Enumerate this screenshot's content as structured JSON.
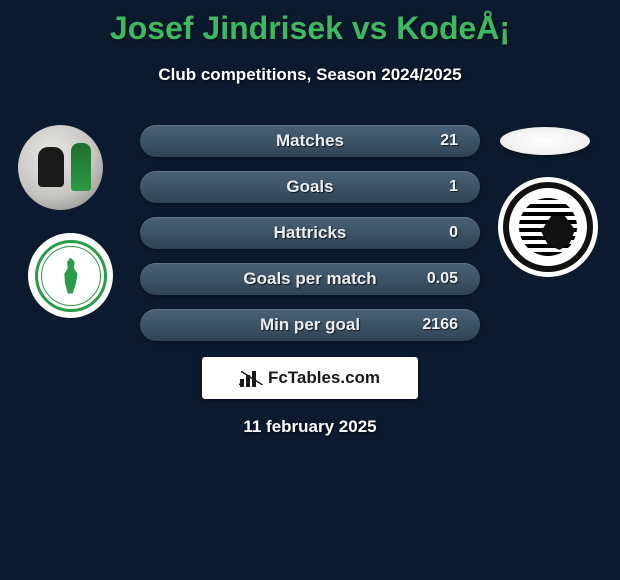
{
  "title": "Josef Jindrisek vs KodeÅ¡",
  "subtitle": "Club competitions, Season 2024/2025",
  "date": "11 february 2025",
  "brand": "FcTables.com",
  "colors": {
    "background": "#0b1a2e",
    "title": "#3fb961",
    "bar_bg_top": "#4a6176",
    "bar_bg_bottom": "#2f4456",
    "text": "#ffffff",
    "brand_bg": "#ffffff",
    "brand_text": "#1a1a1a",
    "club_left_accent": "#2c9b4a",
    "club_right_accent": "#111111"
  },
  "stats": [
    {
      "label": "Matches",
      "value": "21"
    },
    {
      "label": "Goals",
      "value": "1"
    },
    {
      "label": "Hattricks",
      "value": "0"
    },
    {
      "label": "Goals per match",
      "value": "0.05"
    },
    {
      "label": "Min per goal",
      "value": "2166"
    }
  ]
}
